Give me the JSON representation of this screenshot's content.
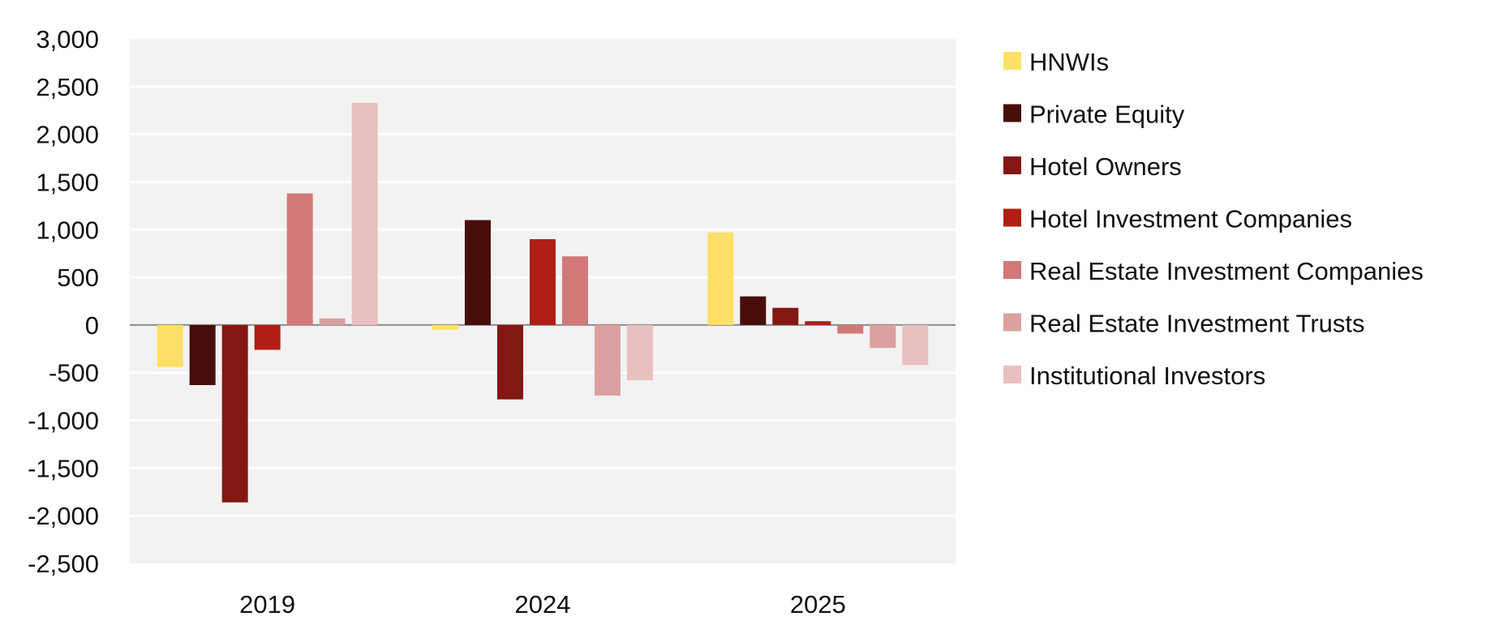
{
  "chart_data": {
    "type": "bar",
    "categories": [
      "2019",
      "2024",
      "2025"
    ],
    "series": [
      {
        "name": "HNWIs",
        "color": "#FFE066",
        "values": [
          -440,
          -50,
          970
        ]
      },
      {
        "name": "Private Equity",
        "color": "#470D0A",
        "values": [
          -630,
          1100,
          300
        ]
      },
      {
        "name": "Hotel Owners",
        "color": "#831812",
        "values": [
          -1860,
          -780,
          180
        ]
      },
      {
        "name": "Hotel Investment Companies",
        "color": "#B01F15",
        "values": [
          -260,
          900,
          40
        ]
      },
      {
        "name": "Real Estate Investment Companies",
        "color": "#D27878",
        "values": [
          1380,
          720,
          -90
        ]
      },
      {
        "name": "Real Estate Investment Trusts",
        "color": "#DDA0A0",
        "values": [
          70,
          -740,
          -240
        ]
      },
      {
        "name": "Institutional Investors",
        "color": "#E8C0C0",
        "values": [
          2330,
          -580,
          -420
        ]
      }
    ],
    "y_ticks": [
      "3,000",
      "2,500",
      "2,000",
      "1,500",
      "1,000",
      "500",
      "0",
      "-500",
      "-1,000",
      "-1,500",
      "-2,000",
      "-2,500"
    ],
    "ylim": [
      -2500,
      3000
    ],
    "grid": true,
    "legend_position": "right",
    "plot_background": "#F2F2F2",
    "title": "",
    "xlabel": "",
    "ylabel": ""
  }
}
